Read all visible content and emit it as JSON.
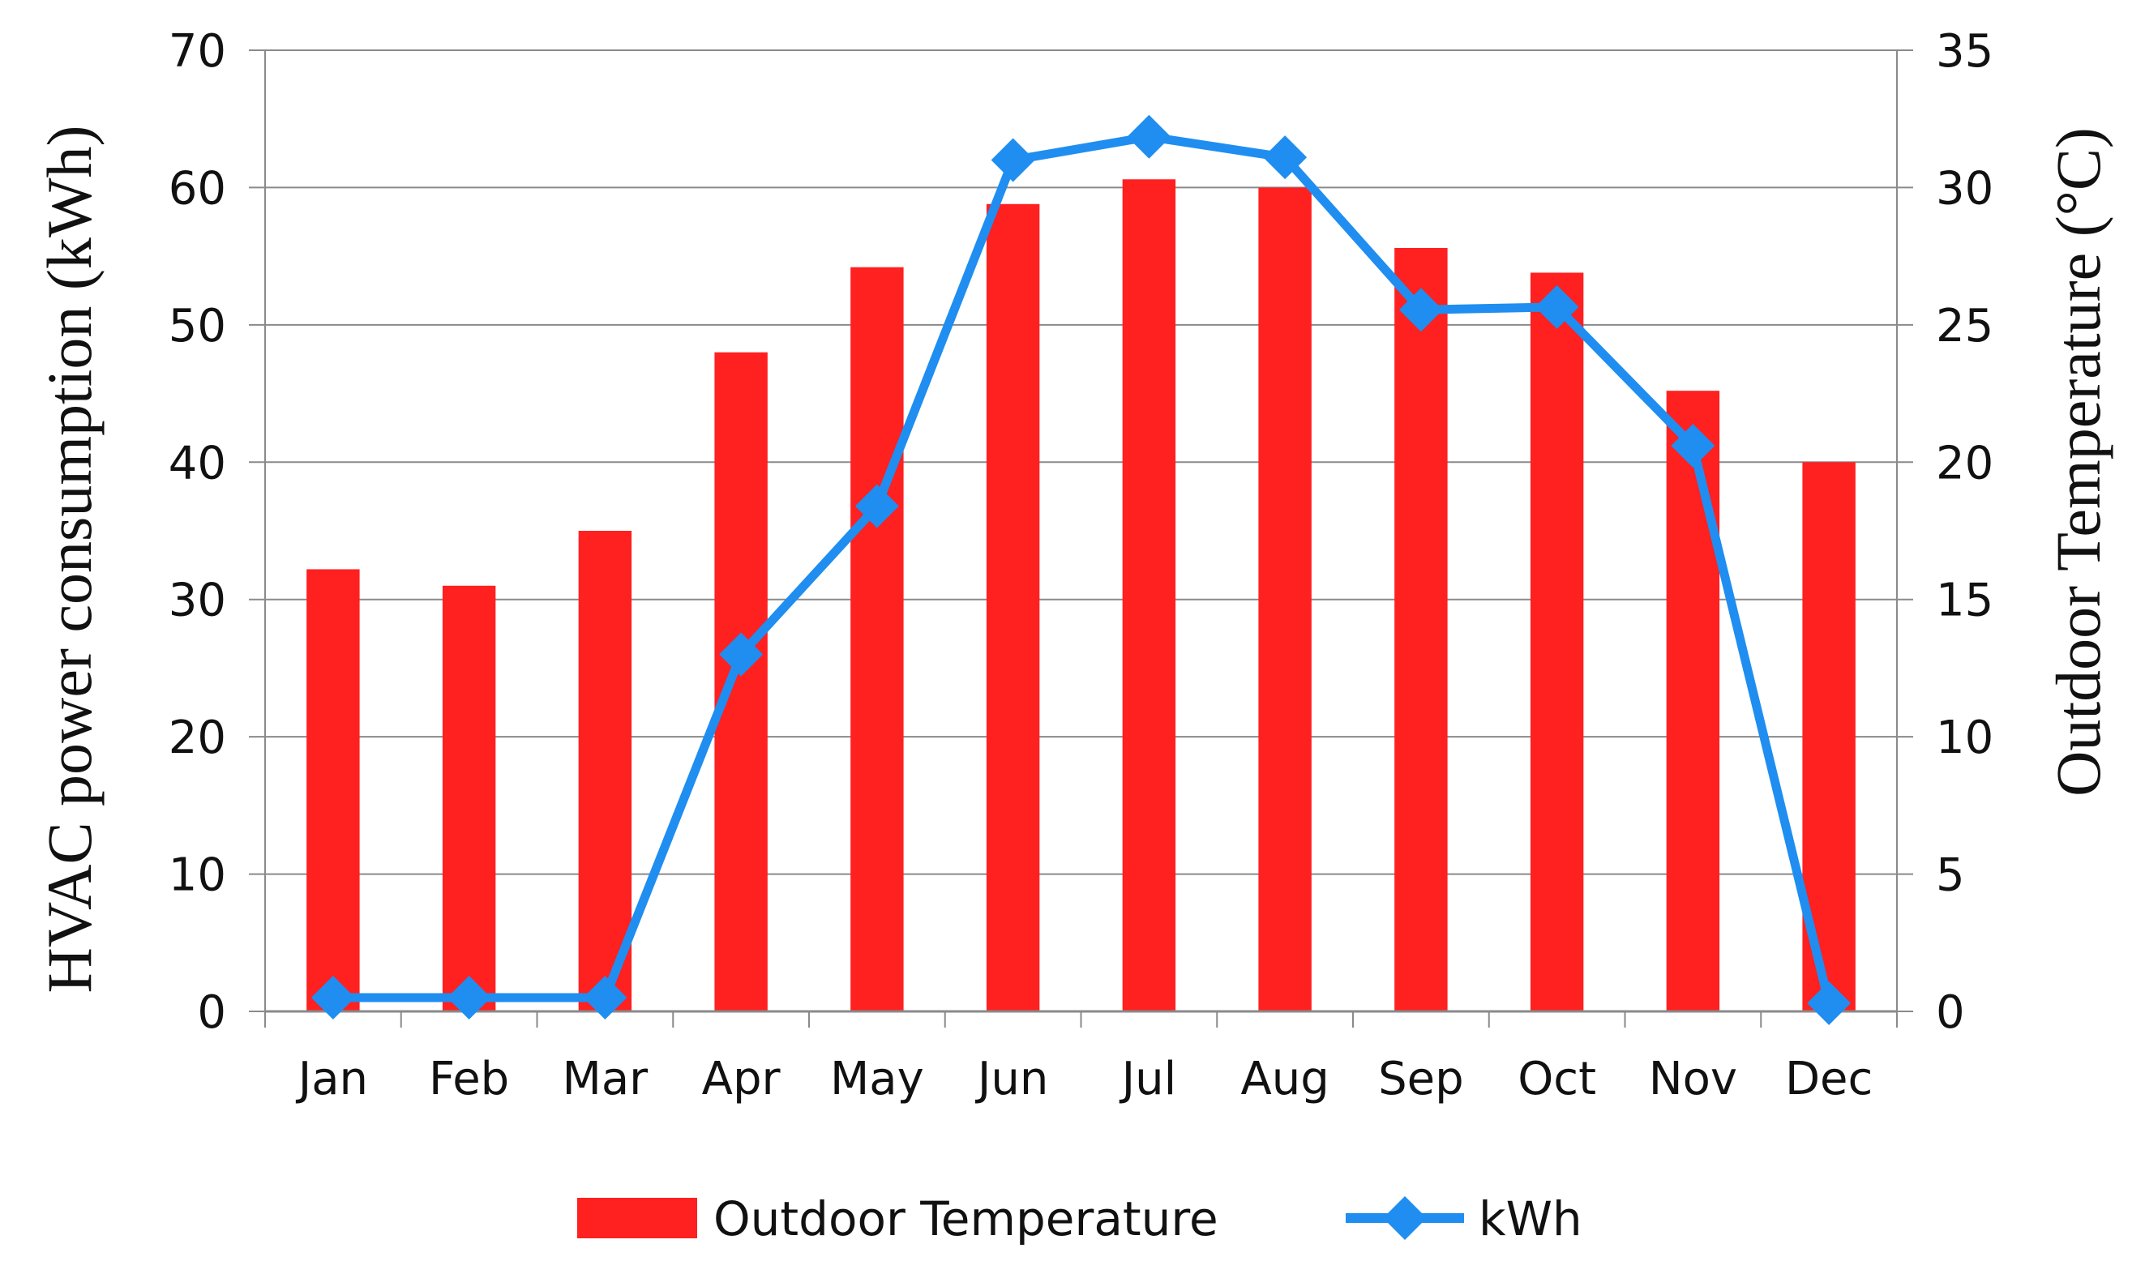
{
  "chart_data": {
    "type": "bar+line",
    "categories": [
      "Jan",
      "Feb",
      "Mar",
      "Apr",
      "May",
      "Jun",
      "Jul",
      "Aug",
      "Sep",
      "Oct",
      "Nov",
      "Dec"
    ],
    "series": [
      {
        "name": "Outdoor Temperature",
        "kind": "bar",
        "axis": "right",
        "color": "#ff2020",
        "values": [
          16.1,
          15.5,
          17.5,
          24.0,
          27.1,
          29.4,
          30.3,
          30.0,
          27.8,
          26.9,
          22.6,
          20.0
        ]
      },
      {
        "name": "kWh",
        "kind": "line",
        "axis": "left",
        "color": "#1f8ef0",
        "marker": "diamond",
        "values": [
          1.0,
          1.0,
          1.0,
          26.0,
          36.8,
          62.0,
          63.7,
          62.2,
          51.1,
          51.3,
          41.2,
          0.6
        ]
      }
    ],
    "left_axis": {
      "label": "HVAC power consumption (kWh)",
      "range": [
        0,
        70
      ],
      "ticks": [
        "0",
        "10",
        "20",
        "30",
        "40",
        "50",
        "60",
        "70"
      ]
    },
    "right_axis": {
      "label": "Outdoor Temperature (°C)",
      "range": [
        0,
        35
      ],
      "ticks": [
        "0",
        "5",
        "10",
        "15",
        "20",
        "25",
        "30",
        "35"
      ]
    },
    "grid": true,
    "legend": {
      "position": "bottom",
      "entries": [
        "Outdoor Temperature",
        "kWh"
      ]
    }
  }
}
